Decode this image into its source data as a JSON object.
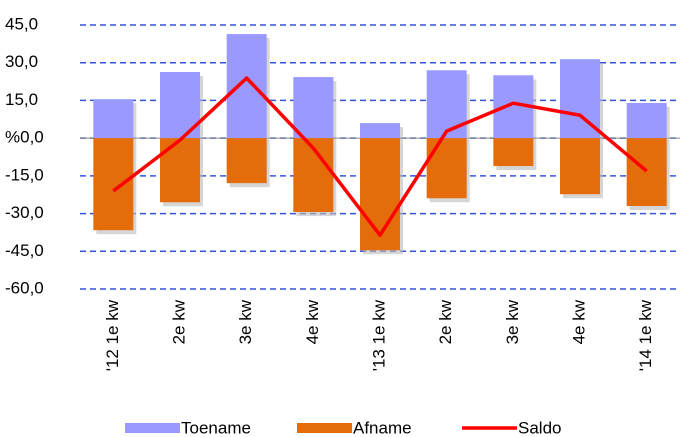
{
  "chart_data": {
    "type": "bar",
    "categories": [
      "'12 1e kw",
      "2e kw",
      "3e kw",
      "4e kw",
      "'13 1e kw",
      "2e kw",
      "3e kw",
      "4e kw",
      "'14 1e kw"
    ],
    "series": [
      {
        "name": "Toename",
        "color": "#9999ff",
        "type": "bar",
        "values": [
          15.5,
          26.3,
          41.4,
          24.3,
          6,
          27,
          25,
          31.4,
          14
        ]
      },
      {
        "name": "Afname",
        "color": "#e46c0a",
        "type": "bar",
        "values": [
          -36.6,
          -25.5,
          -17.9,
          -29.4,
          -44.6,
          -23.9,
          -11.1,
          -22.3,
          -27
        ]
      },
      {
        "name": "Saldo",
        "color": "#ff0000",
        "type": "line",
        "values": [
          -21,
          -0.8,
          23.9,
          -4,
          -38.6,
          2.8,
          13.9,
          9.1,
          -13.1
        ]
      }
    ],
    "ylim": [
      -60,
      45
    ],
    "yticks": [
      {
        "value": 45,
        "label": "45,0"
      },
      {
        "value": 30,
        "label": "30,0"
      },
      {
        "value": 15,
        "label": "15,0"
      },
      {
        "value": 0,
        "label": "%0,0"
      },
      {
        "value": -15,
        "label": "-15,0"
      },
      {
        "value": -30,
        "label": "-30,0"
      },
      {
        "value": -45,
        "label": "-45,0"
      },
      {
        "value": -60,
        "label": "-60,0"
      }
    ],
    "grid": true,
    "legend": "bottom"
  }
}
